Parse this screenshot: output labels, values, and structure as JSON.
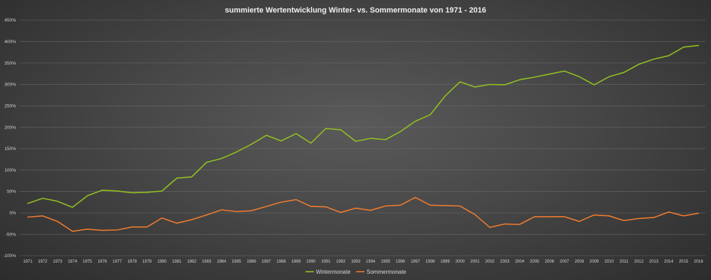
{
  "chart_data": {
    "type": "line",
    "title": "summierte Wertentwicklung Winter- vs. Sommermonate von 1971 - 2016",
    "xlabel": "",
    "ylabel": "",
    "ylim": [
      -100,
      450
    ],
    "y_ticks": [
      -100,
      -50,
      0,
      50,
      100,
      150,
      200,
      250,
      300,
      350,
      400,
      450
    ],
    "y_tick_labels": [
      "-100%",
      "-50%",
      "0%",
      "50%",
      "100%",
      "150%",
      "200%",
      "250%",
      "300%",
      "350%",
      "400%",
      "450%"
    ],
    "grid": true,
    "legend_position": "bottom",
    "x": [
      "1971",
      "1972",
      "1973",
      "1974",
      "1975",
      "1976",
      "1977",
      "1978",
      "1979",
      "1980",
      "1981",
      "1982",
      "1983",
      "1984",
      "1985",
      "1986",
      "1987",
      "1988",
      "1989",
      "1990",
      "1991",
      "1992",
      "1993",
      "1994",
      "1995",
      "1996",
      "1997",
      "1998",
      "1999",
      "2000",
      "2001",
      "2002",
      "2003",
      "2004",
      "2005",
      "2006",
      "2007",
      "2008",
      "2009",
      "2010",
      "2011",
      "2012",
      "2013",
      "2014",
      "2015",
      "2016"
    ],
    "series": [
      {
        "name": "Wintermonate",
        "color": "#92c020",
        "values": [
          22,
          34,
          27,
          13,
          40,
          53,
          51,
          47,
          48,
          51,
          81,
          84,
          118,
          127,
          142,
          160,
          181,
          168,
          185,
          163,
          197,
          194,
          167,
          174,
          171,
          190,
          214,
          229,
          273,
          306,
          294,
          300,
          299,
          311,
          317,
          324,
          331,
          318,
          299,
          318,
          328,
          347,
          359,
          367,
          387,
          391
        ]
      },
      {
        "name": "Sommermonate",
        "color": "#ef7b2f",
        "values": [
          -10,
          -7,
          -20,
          -43,
          -38,
          -41,
          -40,
          -33,
          -33,
          -12,
          -24,
          -16,
          -5,
          7,
          3,
          5,
          15,
          25,
          31,
          15,
          14,
          1,
          11,
          6,
          16,
          18,
          36,
          18,
          17,
          16,
          -4,
          -34,
          -26,
          -27,
          -9,
          -9,
          -9,
          -20,
          -5,
          -7,
          -18,
          -13,
          -11,
          2,
          -7,
          -1
        ]
      }
    ]
  }
}
